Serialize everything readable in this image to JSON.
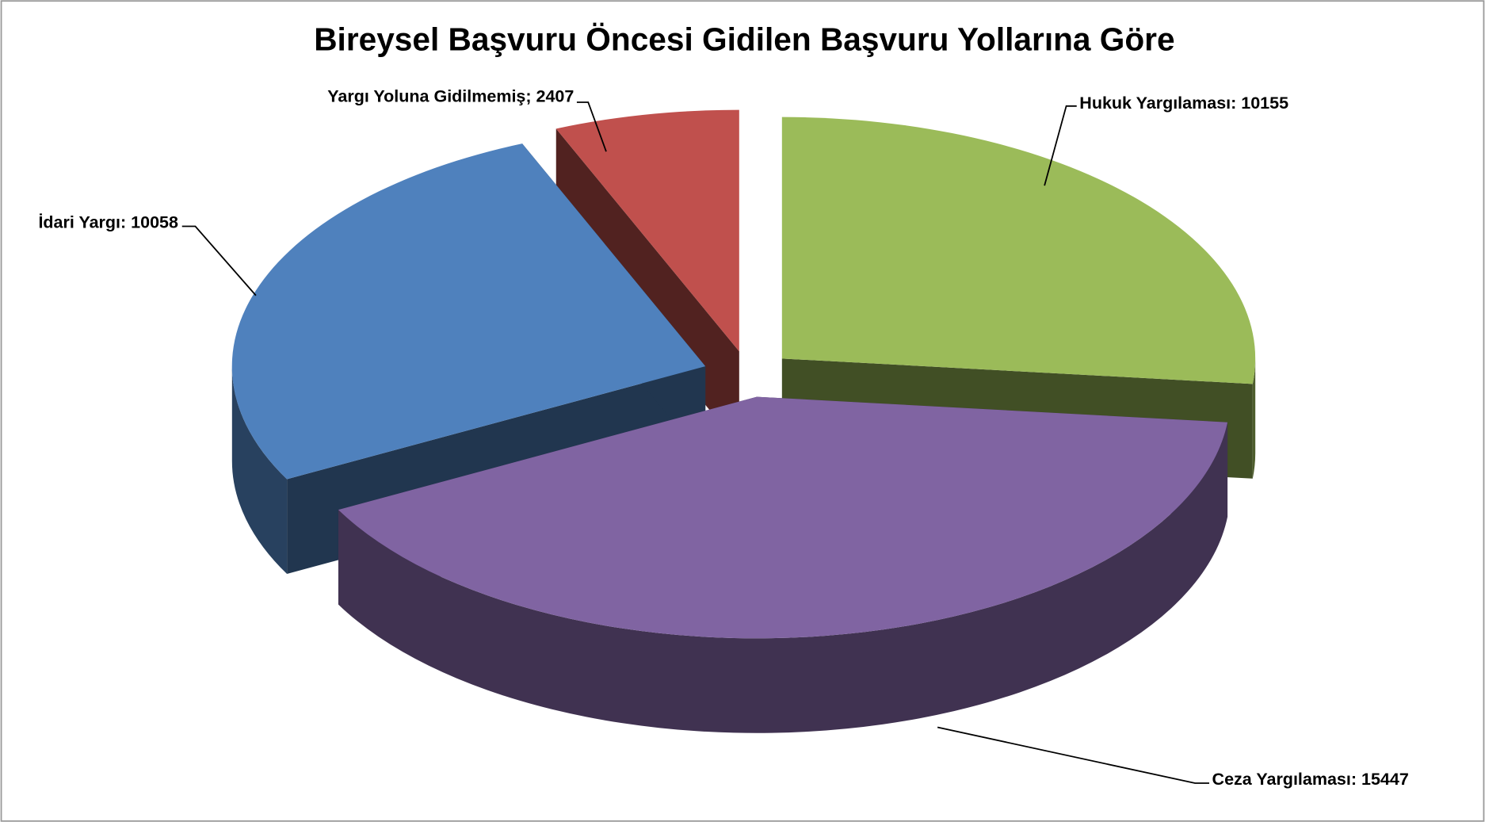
{
  "chart_data": {
    "type": "pie3d",
    "title": "Bireysel Başvuru Öncesi Gidilen Başvuru Yollarına Göre",
    "values": [
      10155,
      15447,
      10058,
      2407
    ],
    "value_labels": [
      "Hukuk Yargılaması: 10155",
      "Ceza Yargılaması: 15447",
      "İdari Yargı: 10058",
      "Yargı Yoluna Gidilmemiş; 2407"
    ],
    "colors": [
      "#9bbb59",
      "#8064a2",
      "#4f81bd",
      "#c0504d"
    ]
  }
}
